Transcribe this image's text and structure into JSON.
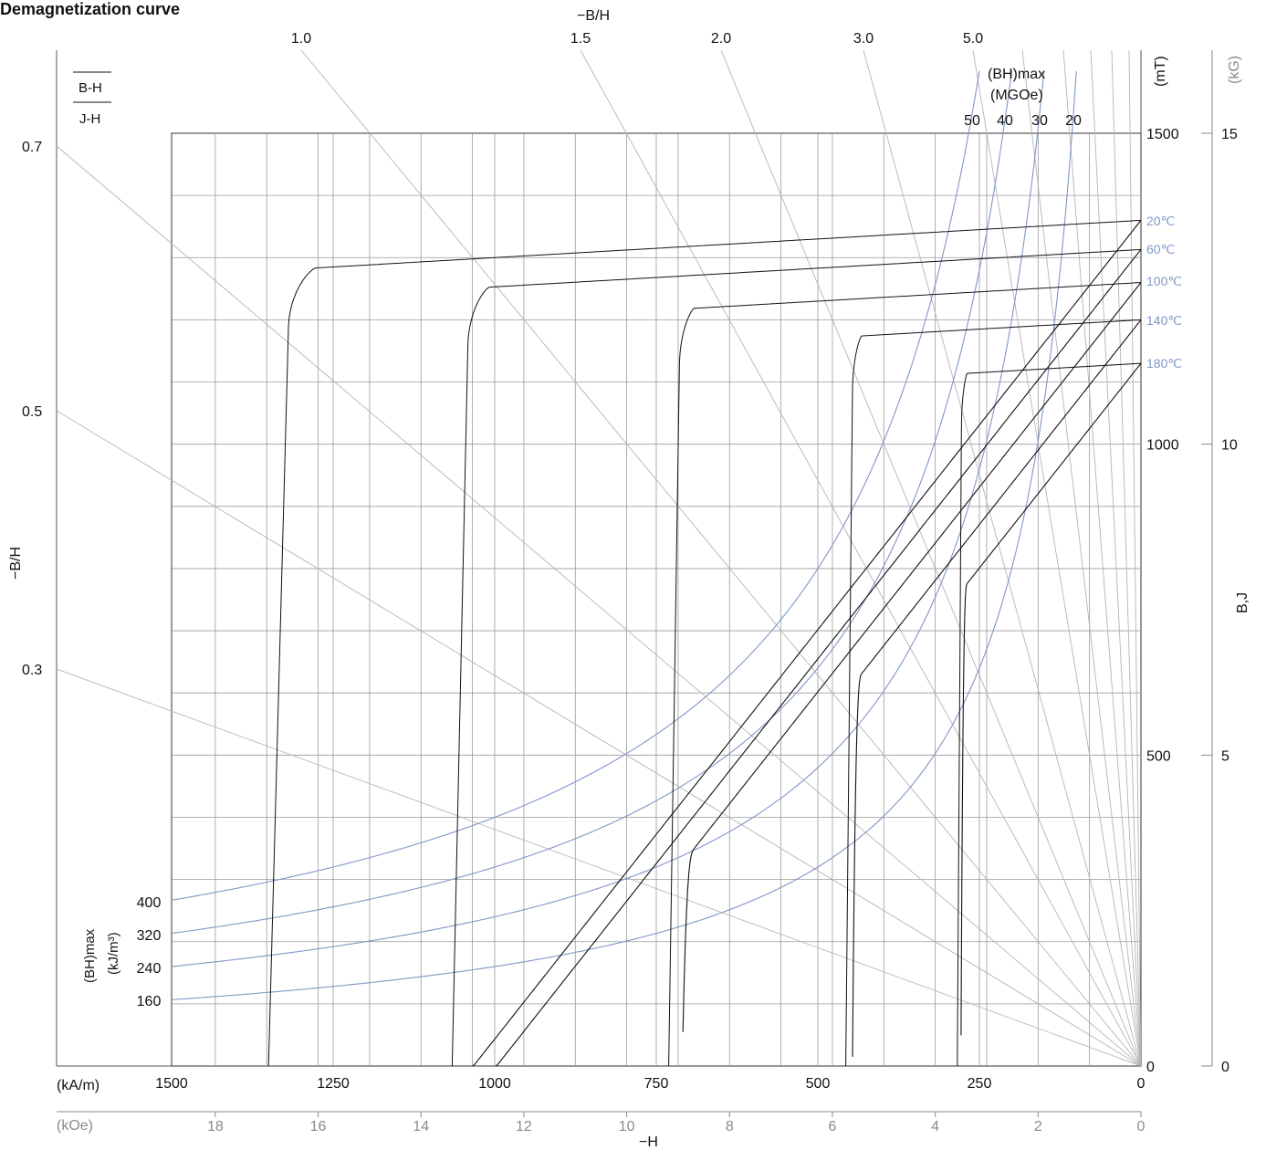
{
  "title": "Demagnetization curve",
  "colors": {
    "text": "#111111",
    "grid": "#9a9a9a",
    "permeance": "#b5b5b5",
    "bhmax": "#7f97c6",
    "curve": "#111111",
    "secondary_axis": "#8a8a8a"
  },
  "labels": {
    "x_unit_primary": "(kA/m)",
    "x_unit_secondary": "(kOe)",
    "x_title": "−H",
    "y_unit_primary": "(mT)",
    "y_unit_secondary": "(kG)",
    "y_title": "B,J",
    "permeance_top_title": "−B/H",
    "permeance_left_title": "−B/H",
    "bhmax_top_title_1": "(BH)max",
    "bhmax_top_title_2": "(MGOe)",
    "bhmax_left_title_1": "(BH)max",
    "bhmax_left_title_2": "(kJ/m³)",
    "legend_bh": "B-H",
    "legend_jh": "J-H"
  },
  "chart_data": {
    "type": "line",
    "title": "Demagnetization curve",
    "xlabel": "−H",
    "ylabel": "B,J",
    "x_unit": "kA/m",
    "y_unit": "mT",
    "xlim": [
      1500,
      0
    ],
    "ylim": [
      0,
      1500
    ],
    "grid": true,
    "x_ticks_primary": [
      "1500",
      "1250",
      "1000",
      "750",
      "500",
      "250",
      "0"
    ],
    "x_ticks_secondary": [
      "18",
      "16",
      "14",
      "12",
      "10",
      "8",
      "6",
      "4",
      "2",
      "0"
    ],
    "y_ticks_primary": [
      "0",
      "500",
      "1000",
      "1500"
    ],
    "y_ticks_secondary": [
      "0",
      "5",
      "10",
      "15"
    ],
    "permeance_top": [
      {
        "label": "1.0",
        "value": 1.0
      },
      {
        "label": "1.5",
        "value": 1.5
      },
      {
        "label": "2.0",
        "value": 2.0
      },
      {
        "label": "3.0",
        "value": 3.0
      },
      {
        "label": "5.0",
        "value": 5.0
      }
    ],
    "permeance_left": [
      {
        "label": "0.7",
        "value": 0.7
      },
      {
        "label": "0.5",
        "value": 0.5
      },
      {
        "label": "0.3",
        "value": 0.3
      }
    ],
    "bhmax_mgoe": [
      {
        "label": "50",
        "value": 50
      },
      {
        "label": "40",
        "value": 40
      },
      {
        "label": "30",
        "value": 30
      },
      {
        "label": "20",
        "value": 20
      }
    ],
    "bhmax_kj": [
      {
        "label": "400",
        "value": 400
      },
      {
        "label": "320",
        "value": 320
      },
      {
        "label": "240",
        "value": 240
      },
      {
        "label": "160",
        "value": 160
      }
    ],
    "series": [
      {
        "name": "20℃",
        "Br": 1360,
        "Hcj": 1330,
        "jh_slope": 0.06
      },
      {
        "name": "60℃",
        "Br": 1313,
        "Hcj": 1050,
        "jh_slope": 0.06
      },
      {
        "name": "100℃",
        "Br": 1260,
        "Hcj": 720,
        "jh_slope": 0.06
      },
      {
        "name": "140℃",
        "Br": 1200,
        "Hcj": 450,
        "jh_slope": 0.06
      },
      {
        "name": "180℃",
        "Br": 1130,
        "Hcj": 280,
        "jh_slope": 0.06
      }
    ]
  }
}
